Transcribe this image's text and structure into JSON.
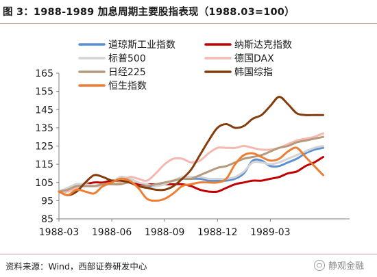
{
  "title": "图 3：1988-1989 加息周期主要股指表现（1988.03=100）",
  "source": "资料来源：Wind，西部证券研发中心",
  "watermark": "静观金融",
  "chart_data": {
    "type": "line",
    "title": "图 3：1988-1989 加息周期主要股指表现（1988.03=100）",
    "xlabel": "",
    "ylabel": "",
    "ylim": [
      85,
      165
    ],
    "yticks": [
      85,
      95,
      105,
      115,
      125,
      135,
      145,
      155,
      165
    ],
    "xlim": [
      0,
      16.5
    ],
    "xticks": [
      {
        "x": 0,
        "label": "1988-03"
      },
      {
        "x": 3,
        "label": "1988-06"
      },
      {
        "x": 6,
        "label": "1988-09"
      },
      {
        "x": 9,
        "label": "1988-12"
      },
      {
        "x": 12,
        "label": "1989-03"
      }
    ],
    "grid": false,
    "legend": "top, two columns",
    "series": [
      {
        "name": "道琼斯工业指数",
        "color": "#5b8fd4",
        "x": [
          0,
          0.5,
          1,
          1.5,
          2,
          2.5,
          3,
          3.5,
          4,
          4.5,
          5,
          5.5,
          6,
          6.5,
          7,
          7.5,
          8,
          8.5,
          9,
          9.5,
          10,
          10.5,
          11,
          11.5,
          12,
          12.5,
          13,
          13.5,
          14,
          14.5,
          15
        ],
        "y": [
          100,
          102,
          104,
          104,
          103,
          103,
          105,
          108,
          107,
          105,
          103,
          103,
          104,
          106,
          107,
          107,
          107,
          106,
          106,
          106,
          107,
          110,
          117,
          117,
          114,
          114,
          116,
          118,
          121,
          123,
          124
        ]
      },
      {
        "name": "纳斯达克指数",
        "color": "#c00000",
        "x": [
          0,
          0.5,
          1,
          1.5,
          2,
          2.5,
          3,
          3.5,
          4,
          4.5,
          5,
          5.5,
          6,
          6.5,
          7,
          7.5,
          8,
          8.5,
          9,
          9.5,
          10,
          10.5,
          11,
          11.5,
          12,
          12.5,
          13,
          13.5,
          14,
          14.5,
          15
        ],
        "y": [
          100,
          101,
          103,
          104,
          105,
          105,
          106,
          106,
          105,
          104,
          104,
          104,
          104,
          104,
          104,
          103,
          101,
          100,
          100,
          102,
          104,
          105,
          106,
          106,
          107,
          108,
          110,
          111,
          114,
          116,
          119
        ]
      },
      {
        "name": "标普500",
        "color": "#d4d4d4",
        "x": [
          0,
          0.5,
          1,
          1.5,
          2,
          2.5,
          3,
          3.5,
          4,
          4.5,
          5,
          5.5,
          6,
          6.5,
          7,
          7.5,
          8,
          8.5,
          9,
          9.5,
          10,
          10.5,
          11,
          11.5,
          12,
          12.5,
          13,
          13.5,
          14,
          14.5,
          15
        ],
        "y": [
          100,
          102,
          104,
          104,
          103,
          103,
          105,
          108,
          107,
          105,
          104,
          103,
          104,
          106,
          108,
          108,
          108,
          107,
          107,
          107,
          108,
          111,
          116,
          116,
          115,
          116,
          118,
          120,
          122,
          124,
          125
        ]
      },
      {
        "name": "德国DAX",
        "color": "#f4b8b0",
        "x": [
          0,
          0.5,
          1,
          1.5,
          2,
          2.5,
          3,
          3.5,
          4,
          4.5,
          5,
          5.5,
          6,
          6.5,
          7,
          7.5,
          8,
          8.5,
          9,
          9.5,
          10,
          10.5,
          11,
          11.5,
          12,
          12.5,
          13,
          13.5,
          14,
          14.5,
          15
        ],
        "y": [
          100,
          100,
          102,
          103,
          103,
          104,
          104,
          105,
          108,
          107,
          106,
          110,
          115,
          118,
          118,
          116,
          117,
          121,
          124,
          124,
          124,
          125,
          124,
          123,
          123,
          124,
          126,
          128,
          129,
          130,
          132
        ]
      },
      {
        "name": "日经225",
        "color": "#b59a7c",
        "x": [
          0,
          0.5,
          1,
          1.5,
          2,
          2.5,
          3,
          3.5,
          4,
          4.5,
          5,
          5.5,
          6,
          6.5,
          7,
          7.5,
          8,
          8.5,
          9,
          9.5,
          10,
          10.5,
          11,
          11.5,
          12,
          12.5,
          13,
          13.5,
          14,
          14.5,
          15
        ],
        "y": [
          100,
          101,
          103,
          103,
          103,
          104,
          104,
          104,
          105,
          103,
          103,
          104,
          105,
          106,
          107,
          107,
          109,
          111,
          113,
          114,
          116,
          118,
          119,
          120,
          122,
          124,
          125,
          127,
          128,
          129,
          130
        ]
      },
      {
        "name": "韩国综指",
        "color": "#843c0c",
        "x": [
          0,
          0.5,
          1,
          1.5,
          2,
          2.5,
          3,
          3.5,
          4,
          4.5,
          5,
          5.5,
          6,
          6.5,
          7,
          7.5,
          8,
          8.5,
          9,
          9.5,
          10,
          10.5,
          11,
          11.5,
          12,
          12.5,
          13,
          13.5,
          14,
          14.5,
          15
        ],
        "y": [
          100,
          98,
          100,
          105,
          109,
          108,
          106,
          106,
          105,
          103,
          102,
          101,
          101,
          103,
          107,
          112,
          120,
          128,
          135,
          137,
          135,
          136,
          140,
          142,
          147,
          152,
          148,
          143,
          142,
          142,
          142
        ]
      },
      {
        "name": "恒生指数",
        "color": "#ed7d31",
        "x": [
          0,
          0.5,
          1,
          1.5,
          2,
          2.5,
          3,
          3.5,
          4,
          4.5,
          5,
          5.5,
          6,
          6.5,
          7,
          7.5,
          8,
          8.5,
          9,
          9.5,
          10,
          10.5,
          11,
          11.5,
          12,
          12.5,
          13,
          13.5,
          14,
          14.5,
          15
        ],
        "y": [
          100,
          98,
          101,
          100,
          99,
          103,
          105,
          107,
          106,
          102,
          96,
          95,
          96,
          99,
          103,
          104,
          105,
          105,
          105,
          107,
          115,
          120,
          121,
          119,
          117,
          118,
          122,
          124,
          119,
          114,
          109
        ]
      }
    ]
  }
}
